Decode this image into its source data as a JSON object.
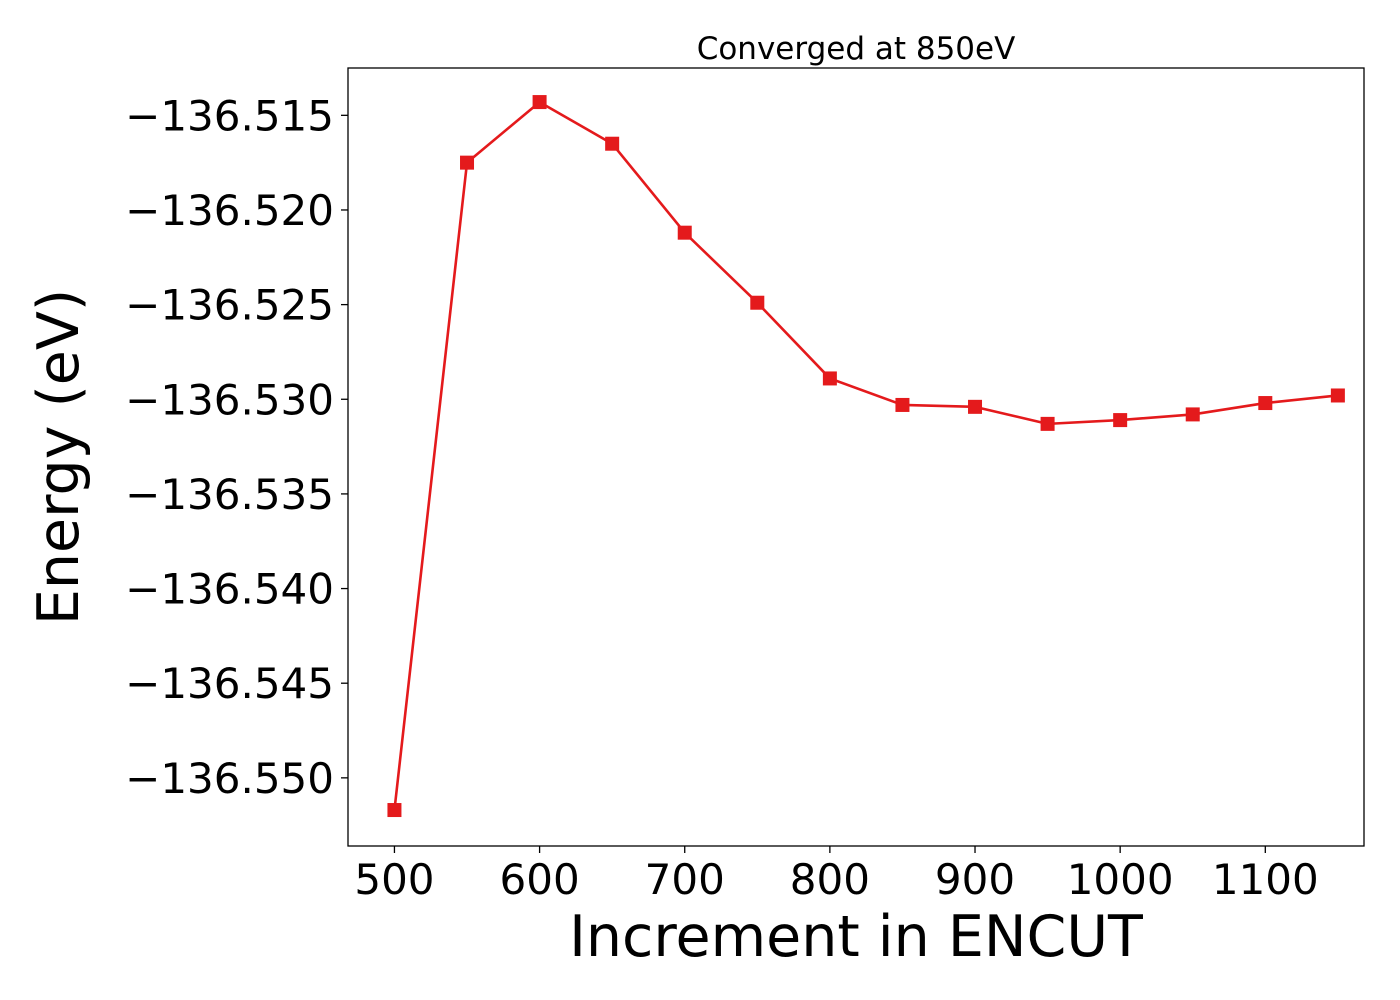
{
  "chart_data": {
    "type": "line",
    "title": "Converged at 850eV",
    "xlabel": "Increment in ENCUT",
    "ylabel": "Energy (eV)",
    "xlim": [
      468,
      1168
    ],
    "ylim": [
      -136.5536,
      -136.5125
    ],
    "x_ticks": [
      500,
      600,
      700,
      800,
      900,
      1000,
      1100
    ],
    "y_ticks": [
      -136.515,
      -136.52,
      -136.525,
      -136.53,
      -136.535,
      -136.54,
      -136.545,
      -136.55
    ],
    "y_tick_labels": [
      "−136.515",
      "−136.520",
      "−136.525",
      "−136.530",
      "−136.535",
      "−136.540",
      "−136.545",
      "−136.550"
    ],
    "grid": false,
    "legend": null,
    "series": [
      {
        "color": "#e41a1c",
        "marker": "square",
        "x": [
          500,
          550,
          600,
          650,
          700,
          750,
          800,
          850,
          900,
          950,
          1000,
          1050,
          1100,
          1150
        ],
        "y": [
          -136.5517,
          -136.5175,
          -136.5143,
          -136.5165,
          -136.5212,
          -136.5249,
          -136.5289,
          -136.5303,
          -136.5304,
          -136.5313,
          -136.5311,
          -136.5308,
          -136.5302,
          -136.5298
        ]
      }
    ]
  }
}
